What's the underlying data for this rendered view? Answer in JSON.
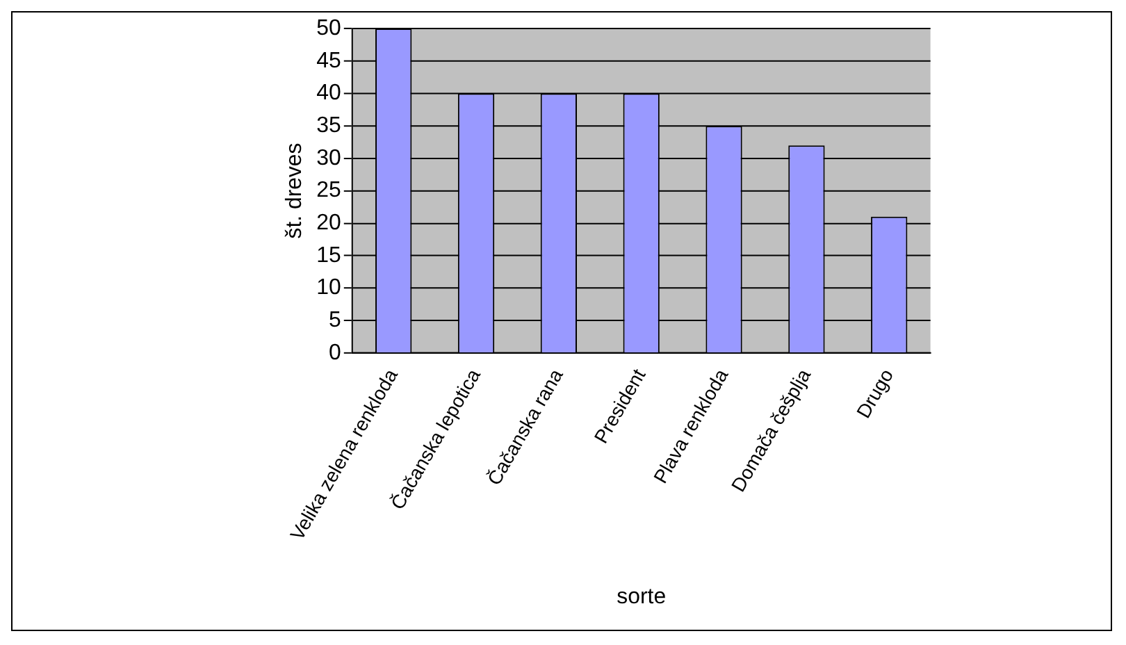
{
  "chart_data": {
    "type": "bar",
    "xlabel": "sorte",
    "ylabel": "št. dreves",
    "categories": [
      "Velika zelena renkloda",
      "Čačanska lepotica",
      "Čačanska rana",
      "President",
      "Plava renkloda",
      "Domača češplja",
      "Drugo"
    ],
    "values": [
      50,
      40,
      40,
      40,
      35,
      32,
      21
    ],
    "color": "#9999ff",
    "ylim": [
      0,
      50
    ],
    "yticks": [
      0,
      5,
      10,
      15,
      20,
      25,
      30,
      35,
      40,
      45,
      50
    ],
    "grid": "y",
    "legend": false
  }
}
